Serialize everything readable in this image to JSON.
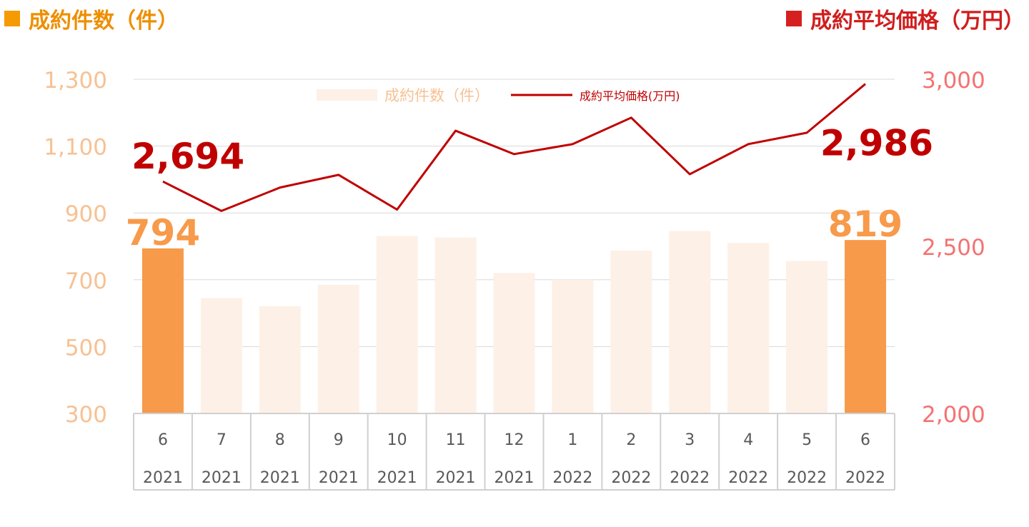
{
  "header": {
    "left_title": "成約件数（件）",
    "right_title": "成約平均価格（万円）"
  },
  "colors": {
    "bar_highlight": "#f79a4a",
    "bar_normal": "#fdf0e7",
    "line": "#c00000",
    "left_axis": "#f7c193",
    "right_axis": "#f47272",
    "left_header": "#ee8f00",
    "right_header": "#d01e1e"
  },
  "chart_data": {
    "type": "bar",
    "categories": [
      [
        "6",
        "2021"
      ],
      [
        "7",
        "2021"
      ],
      [
        "8",
        "2021"
      ],
      [
        "9",
        "2021"
      ],
      [
        "10",
        "2021"
      ],
      [
        "11",
        "2021"
      ],
      [
        "12",
        "2021"
      ],
      [
        "1",
        "2022"
      ],
      [
        "2",
        "2022"
      ],
      [
        "3",
        "2022"
      ],
      [
        "4",
        "2022"
      ],
      [
        "5",
        "2022"
      ],
      [
        "6",
        "2022"
      ]
    ],
    "series": [
      {
        "name": "成約件数（件）",
        "type": "bar",
        "axis": "left",
        "values": [
          794,
          645,
          621,
          685,
          831,
          827,
          720,
          700,
          787,
          846,
          810,
          756,
          819
        ],
        "highlight": [
          0,
          12
        ]
      },
      {
        "name": "成約平均価格(万円)",
        "type": "line",
        "axis": "right",
        "values": [
          2694,
          2606,
          2676,
          2714,
          2610,
          2846,
          2776,
          2806,
          2885,
          2716,
          2806,
          2840,
          2986
        ]
      }
    ],
    "y_left": {
      "ylim": [
        300,
        1300
      ],
      "ticks": [
        "300",
        "500",
        "700",
        "900",
        "1,100",
        "1,300"
      ]
    },
    "y_right": {
      "ylim": [
        2000,
        3000
      ],
      "ticks": [
        "2,000",
        "2,500",
        "3,000"
      ]
    },
    "data_labels": [
      {
        "text": "794",
        "series": 0,
        "index": 0
      },
      {
        "text": "819",
        "series": 0,
        "index": 12
      },
      {
        "text": "2,694",
        "series": 1,
        "index": 0
      },
      {
        "text": "2,986",
        "series": 1,
        "index": 12
      }
    ],
    "legend_position": "top-center",
    "grid": true
  }
}
